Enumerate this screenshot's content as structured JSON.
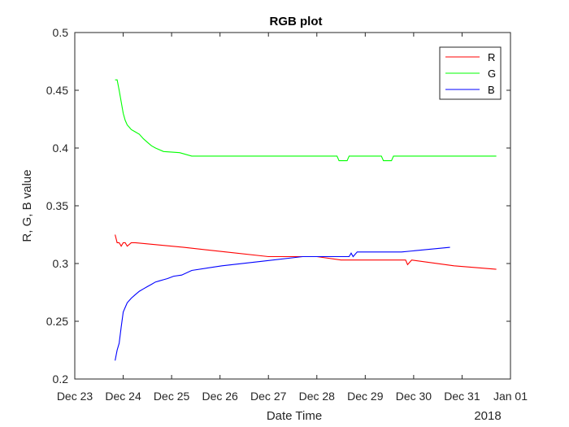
{
  "chart_data": {
    "type": "line",
    "title": "RGB plot",
    "xlabel": "Date Time",
    "ylabel": "R, G, B value",
    "year_label": "2018",
    "xlim": [
      "2017-12-23",
      "2018-01-01"
    ],
    "ylim": [
      0.2,
      0.5
    ],
    "x_ticks": [
      "2017-12-23",
      "2017-12-24",
      "2017-12-25",
      "2017-12-26",
      "2017-12-27",
      "2017-12-28",
      "2017-12-29",
      "2017-12-30",
      "2017-12-31",
      "2018-01-01"
    ],
    "x_tick_labels": [
      "Dec 23",
      "Dec 24",
      "Dec 25",
      "Dec 26",
      "Dec 27",
      "Dec 28",
      "Dec 29",
      "Dec 30",
      "Dec 31",
      "Jan 01"
    ],
    "y_ticks": [
      0.2,
      0.25,
      0.3,
      0.35,
      0.4,
      0.45,
      0.5
    ],
    "y_tick_labels": [
      "0.2",
      "0.25",
      "0.3",
      "0.35",
      "0.4",
      "0.45",
      "0.5"
    ],
    "grid": false,
    "legend_position": "top-right",
    "series": [
      {
        "name": "R",
        "color": "#ff0000",
        "x": [
          "2017-12-23 20:00",
          "2017-12-23 21:00",
          "2017-12-23 22:00",
          "2017-12-23 23:00",
          "2017-12-24 00:00",
          "2017-12-24 01:00",
          "2017-12-24 02:00",
          "2017-12-24 04:00",
          "2017-12-24 05:00",
          "2017-12-24 06:00",
          "2017-12-25 06:00",
          "2017-12-26 03:00",
          "2017-12-27 00:00",
          "2017-12-28 00:00",
          "2017-12-28 12:00",
          "2017-12-29 00:00",
          "2017-12-29 20:00",
          "2017-12-29 21:00",
          "2017-12-29 23:00",
          "2017-12-30 20:00",
          "2017-12-31 17:00"
        ],
        "y": [
          0.325,
          0.318,
          0.318,
          0.315,
          0.318,
          0.318,
          0.315,
          0.318,
          0.318,
          0.318,
          0.314,
          0.31,
          0.306,
          0.306,
          0.303,
          0.303,
          0.303,
          0.299,
          0.303,
          0.298,
          0.295
        ]
      },
      {
        "name": "G",
        "color": "#00ff00",
        "x": [
          "2017-12-23 20:00",
          "2017-12-23 21:00",
          "2017-12-23 22:00",
          "2017-12-23 23:00",
          "2017-12-24 00:00",
          "2017-12-24 01:00",
          "2017-12-24 02:00",
          "2017-12-24 03:00",
          "2017-12-24 04:00",
          "2017-12-24 06:00",
          "2017-12-24 08:00",
          "2017-12-24 10:00",
          "2017-12-24 12:00",
          "2017-12-24 14:00",
          "2017-12-24 16:00",
          "2017-12-24 20:00",
          "2017-12-25 04:00",
          "2017-12-25 10:00",
          "2017-12-28 10:00",
          "2017-12-28 11:00",
          "2017-12-28 15:00",
          "2017-12-28 16:00",
          "2017-12-29 08:00",
          "2017-12-29 09:00",
          "2017-12-29 13:00",
          "2017-12-29 14:00",
          "2017-12-31 17:00"
        ],
        "y": [
          0.459,
          0.459,
          0.45,
          0.44,
          0.43,
          0.424,
          0.42,
          0.418,
          0.416,
          0.414,
          0.412,
          0.408,
          0.405,
          0.402,
          0.4,
          0.397,
          0.396,
          0.393,
          0.393,
          0.389,
          0.389,
          0.393,
          0.393,
          0.389,
          0.389,
          0.393,
          0.393
        ]
      },
      {
        "name": "B",
        "color": "#0000ff",
        "x": [
          "2017-12-23 20:00",
          "2017-12-23 21:00",
          "2017-12-23 22:00",
          "2017-12-23 23:00",
          "2017-12-24 00:00",
          "2017-12-24 01:00",
          "2017-12-24 02:00",
          "2017-12-24 04:00",
          "2017-12-24 06:00",
          "2017-12-24 08:00",
          "2017-12-24 10:00",
          "2017-12-24 12:00",
          "2017-12-24 14:00",
          "2017-12-24 16:00",
          "2017-12-24 18:00",
          "2017-12-24 20:00",
          "2017-12-24 22:00",
          "2017-12-25 01:00",
          "2017-12-25 05:00",
          "2017-12-25 10:00",
          "2017-12-26 01:00",
          "2017-12-26 21:00",
          "2017-12-27 17:00",
          "2017-12-28 16:00",
          "2017-12-28 17:00",
          "2017-12-28 18:00",
          "2017-12-28 20:00",
          "2017-12-29 18:00",
          "2017-12-30 18:00"
        ],
        "y": [
          0.216,
          0.225,
          0.231,
          0.245,
          0.258,
          0.262,
          0.266,
          0.27,
          0.273,
          0.276,
          0.278,
          0.28,
          0.282,
          0.284,
          0.285,
          0.286,
          0.287,
          0.289,
          0.29,
          0.294,
          0.298,
          0.302,
          0.306,
          0.306,
          0.309,
          0.306,
          0.31,
          0.31,
          0.314
        ]
      }
    ]
  }
}
